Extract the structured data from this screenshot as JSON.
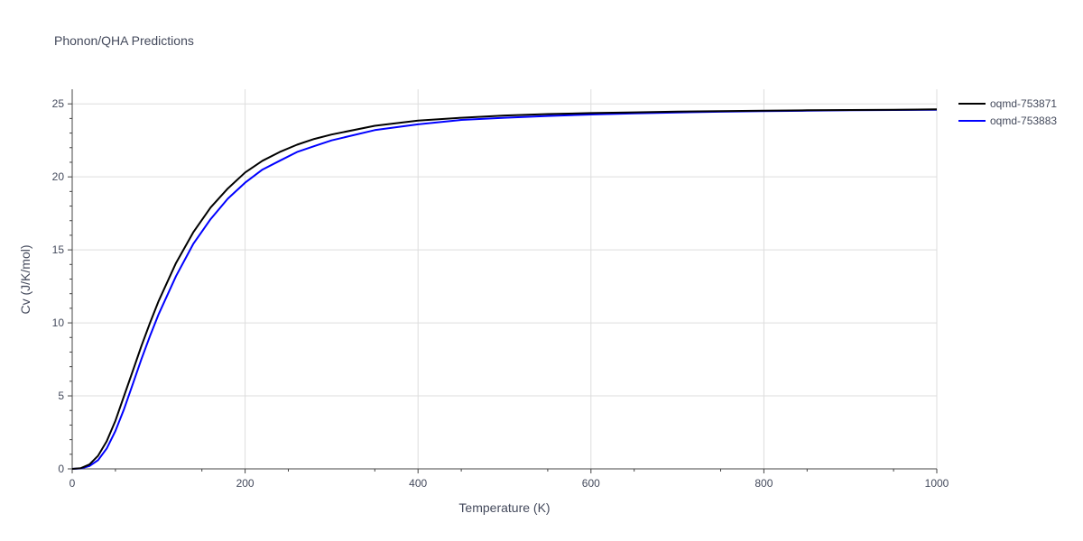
{
  "chart_data": {
    "type": "line",
    "title": "Phonon/QHA Predictions",
    "xlabel": "Temperature (K)",
    "ylabel": "Cv (J/K/mol)",
    "xlim": [
      0,
      1000
    ],
    "ylim": [
      0,
      26
    ],
    "x_ticks": [
      0,
      200,
      400,
      600,
      800,
      1000
    ],
    "y_ticks": [
      0,
      5,
      10,
      15,
      20,
      25
    ],
    "grid": true,
    "legend_position": "top-right",
    "series": [
      {
        "name": "oqmd-753871",
        "color": "#000000",
        "x": [
          0,
          10,
          20,
          30,
          40,
          50,
          60,
          70,
          80,
          90,
          100,
          120,
          140,
          160,
          180,
          200,
          220,
          240,
          260,
          280,
          300,
          350,
          400,
          450,
          500,
          550,
          600,
          650,
          700,
          750,
          800,
          850,
          900,
          950,
          1000
        ],
        "y": [
          0,
          0.05,
          0.3,
          0.9,
          1.9,
          3.3,
          5.0,
          6.7,
          8.4,
          10.0,
          11.5,
          14.1,
          16.2,
          17.9,
          19.2,
          20.3,
          21.1,
          21.7,
          22.2,
          22.6,
          22.9,
          23.5,
          23.85,
          24.05,
          24.2,
          24.3,
          24.37,
          24.42,
          24.47,
          24.5,
          24.53,
          24.56,
          24.58,
          24.6,
          24.62
        ]
      },
      {
        "name": "oqmd-753883",
        "color": "#0000ff",
        "x": [
          0,
          10,
          20,
          30,
          40,
          50,
          60,
          70,
          80,
          90,
          100,
          120,
          140,
          160,
          180,
          200,
          220,
          240,
          260,
          280,
          300,
          350,
          400,
          450,
          500,
          550,
          600,
          650,
          700,
          750,
          800,
          850,
          900,
          950,
          1000
        ],
        "y": [
          0,
          0.03,
          0.2,
          0.6,
          1.4,
          2.6,
          4.1,
          5.8,
          7.5,
          9.1,
          10.6,
          13.2,
          15.4,
          17.1,
          18.5,
          19.6,
          20.5,
          21.1,
          21.7,
          22.1,
          22.5,
          23.2,
          23.6,
          23.9,
          24.05,
          24.17,
          24.27,
          24.35,
          24.41,
          24.46,
          24.5,
          24.53,
          24.56,
          24.58,
          24.6
        ]
      }
    ]
  }
}
